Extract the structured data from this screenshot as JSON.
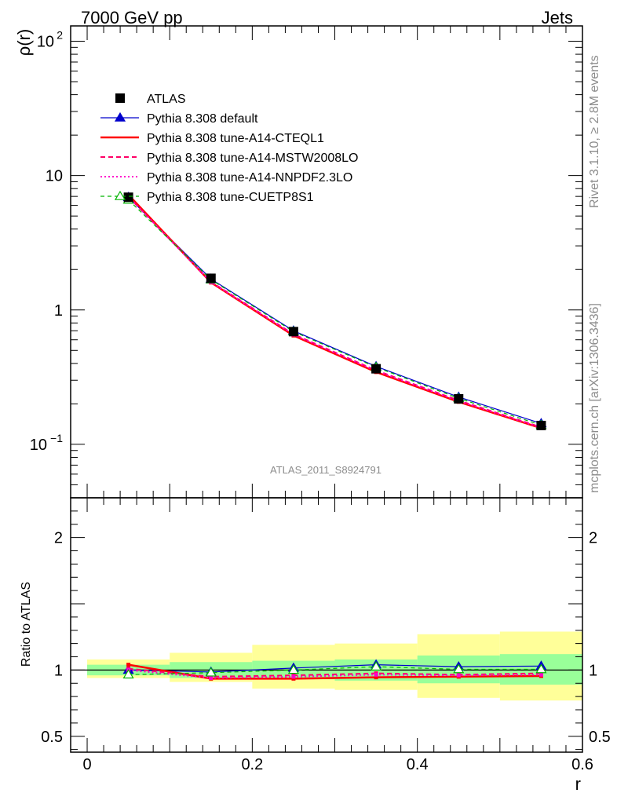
{
  "header": {
    "left": "7000 GeV pp",
    "right": "Jets"
  },
  "side": {
    "top": "Rivet 3.1.10, ≥ 2.8M events",
    "bottom": "mcplots.cern.ch [arXiv:1306.3436]"
  },
  "watermark": "ATLAS_2011_S8924791",
  "colors": {
    "atlas": "#000000",
    "default": "#0000cc",
    "cteql1": "#ff0000",
    "mstw": "#ff0066",
    "nnpdf": "#ff00cc",
    "cuetp8s1": "#00b300",
    "band_inner": "#99ff99",
    "band_outer": "#ffff99"
  },
  "chart_data": [
    {
      "type": "line",
      "ylabel": "ρ(r)",
      "yscale": "log",
      "ylim": [
        0.04,
        130
      ],
      "xlim": [
        -0.02,
        0.6
      ],
      "yticks": [
        {
          "value": 100,
          "label": "10",
          "sup": "2"
        },
        {
          "value": 10,
          "label": "10",
          "sup": ""
        },
        {
          "value": 1,
          "label": "1",
          "sup": ""
        },
        {
          "value": 0.1,
          "label": "10",
          "sup": "−1"
        }
      ],
      "x": [
        0.05,
        0.15,
        0.25,
        0.35,
        0.45,
        0.55
      ],
      "legend_position": "top-left",
      "series": [
        {
          "name": "ATLAS",
          "key": "atlas",
          "style": "data",
          "values": [
            6.9,
            1.72,
            0.69,
            0.365,
            0.218,
            0.138
          ]
        },
        {
          "name": "Pythia 8.308 default",
          "key": "default",
          "style": "line-triangle",
          "values": [
            6.9,
            1.7,
            0.7,
            0.38,
            0.225,
            0.143
          ]
        },
        {
          "name": "Pythia 8.308 tune-A14-CTEQL1",
          "key": "cteql1",
          "style": "line-solid",
          "values": [
            7.2,
            1.6,
            0.645,
            0.345,
            0.207,
            0.132
          ]
        },
        {
          "name": "Pythia 8.308 tune-A14-MSTW2008LO",
          "key": "mstw",
          "style": "line-dashed",
          "values": [
            6.95,
            1.62,
            0.66,
            0.355,
            0.212,
            0.134
          ]
        },
        {
          "name": "Pythia 8.308 tune-A14-NNPDF2.3LO",
          "key": "nnpdf",
          "style": "line-dotted",
          "values": [
            6.95,
            1.61,
            0.655,
            0.352,
            0.21,
            0.133
          ]
        },
        {
          "name": "Pythia 8.308 tune-CUETP8S1",
          "key": "cuetp8s1",
          "style": "line-dashed-open-triangle",
          "values": [
            6.6,
            1.68,
            0.69,
            0.375,
            0.22,
            0.139
          ]
        }
      ]
    },
    {
      "type": "line",
      "ylabel": "Ratio to ATLAS",
      "xlabel": "r",
      "ylim": [
        0.38,
        2.3
      ],
      "xlim": [
        -0.02,
        0.6
      ],
      "yticks": [
        {
          "value": 2,
          "label": "2"
        },
        {
          "value": 1,
          "label": "1"
        },
        {
          "value": 0.5,
          "label": "0.5"
        }
      ],
      "xticks": [
        {
          "value": 0,
          "label": "0"
        },
        {
          "value": 0.2,
          "label": "0.2"
        },
        {
          "value": 0.4,
          "label": "0.4"
        },
        {
          "value": 0.6,
          "label": "0.6"
        }
      ],
      "bands": [
        {
          "x0": 0.0,
          "x1": 0.1,
          "inner": [
            0.96,
            1.04
          ],
          "outer": [
            0.94,
            1.08
          ]
        },
        {
          "x0": 0.1,
          "x1": 0.2,
          "inner": [
            0.94,
            1.06
          ],
          "outer": [
            0.91,
            1.13
          ]
        },
        {
          "x0": 0.2,
          "x1": 0.3,
          "inner": [
            0.93,
            1.07
          ],
          "outer": [
            0.86,
            1.19
          ]
        },
        {
          "x0": 0.3,
          "x1": 0.4,
          "inner": [
            0.92,
            1.08
          ],
          "outer": [
            0.85,
            1.2
          ]
        },
        {
          "x0": 0.4,
          "x1": 0.5,
          "inner": [
            0.9,
            1.11
          ],
          "outer": [
            0.79,
            1.27
          ]
        },
        {
          "x0": 0.5,
          "x1": 0.6,
          "inner": [
            0.89,
            1.12
          ],
          "outer": [
            0.77,
            1.29
          ]
        }
      ],
      "x": [
        0.05,
        0.15,
        0.25,
        0.35,
        0.45,
        0.55
      ],
      "series": [
        {
          "name": "Pythia 8.308 default",
          "key": "default",
          "style": "line-triangle",
          "values": [
            1.0,
            0.985,
            1.015,
            1.04,
            1.025,
            1.03
          ]
        },
        {
          "name": "Pythia 8.308 tune-A14-CTEQL1",
          "key": "cteql1",
          "style": "line-solid",
          "values": [
            1.04,
            0.935,
            0.935,
            0.945,
            0.95,
            0.955
          ]
        },
        {
          "name": "Pythia 8.308 tune-A14-MSTW2008LO",
          "key": "mstw",
          "style": "line-dashed",
          "values": [
            1.01,
            0.95,
            0.96,
            0.975,
            0.965,
            0.975
          ]
        },
        {
          "name": "Pythia 8.308 tune-A14-NNPDF2.3LO",
          "key": "nnpdf",
          "style": "line-dotted",
          "values": [
            1.0,
            0.94,
            0.95,
            0.965,
            0.96,
            0.965
          ]
        },
        {
          "name": "Pythia 8.308 tune-CUETP8S1",
          "key": "cuetp8s1",
          "style": "line-dashed-open-triangle",
          "values": [
            0.965,
            0.98,
            1.0,
            1.025,
            1.005,
            1.005
          ]
        }
      ]
    }
  ]
}
